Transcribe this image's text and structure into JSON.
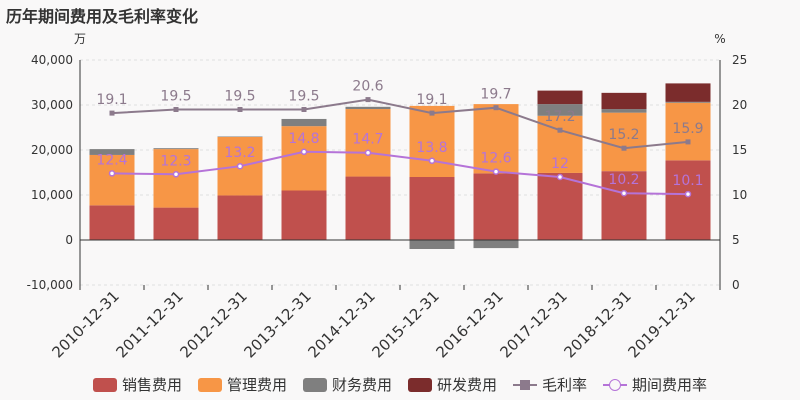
{
  "title": "历年期间费用及毛利率变化",
  "chart_data": {
    "type": "bar",
    "stacked": true,
    "categories": [
      "2010-12-31",
      "2011-12-31",
      "2012-12-31",
      "2013-12-31",
      "2014-12-31",
      "2015-12-31",
      "2016-12-31",
      "2017-12-31",
      "2018-12-31",
      "2019-12-31"
    ],
    "left_unit": "万",
    "right_unit": "%",
    "ylim_left": [
      -10000,
      40000
    ],
    "yticks_left": [
      "-10,000",
      "0",
      "10,000",
      "20,000",
      "30,000",
      "40,000"
    ],
    "ylim_right": [
      0,
      25
    ],
    "yticks_right": [
      "0",
      "5",
      "10",
      "15",
      "20",
      "25"
    ],
    "grid": true,
    "legend_position": "bottom",
    "bar_series": [
      {
        "name": "销售费用",
        "color": "#c0504d",
        "values": [
          7700,
          7200,
          9900,
          11000,
          14100,
          14000,
          14800,
          14900,
          15300,
          17700
        ]
      },
      {
        "name": "管理费用",
        "color": "#f79646",
        "values": [
          11200,
          13000,
          13000,
          14300,
          15000,
          15800,
          15400,
          12700,
          13000,
          12800
        ]
      },
      {
        "name": "财务费用",
        "color": "#7f7f7f",
        "values": [
          1300,
          200,
          100,
          1600,
          500,
          -2000,
          -1800,
          2600,
          800,
          200
        ]
      },
      {
        "name": "研发费用",
        "color": "#7b2c2c",
        "values": [
          0,
          0,
          0,
          0,
          0,
          0,
          0,
          3000,
          3600,
          4100
        ]
      }
    ],
    "line_series": [
      {
        "name": "毛利率",
        "color": "#8c7a8c",
        "marker": "square",
        "values": [
          19.1,
          19.5,
          19.5,
          19.5,
          20.6,
          19.1,
          19.7,
          17.2,
          15.2,
          15.9
        ],
        "labels": [
          "19.1",
          "19.5",
          "19.5",
          "19.5",
          "20.6",
          "19.1",
          "19.7",
          "17.2",
          "15.2",
          "15.9"
        ]
      },
      {
        "name": "期间费用率",
        "color": "#b573d8",
        "marker": "circle",
        "values": [
          12.4,
          12.3,
          13.2,
          14.8,
          14.7,
          13.8,
          12.6,
          12.0,
          10.2,
          10.1
        ],
        "labels": [
          "12.4",
          "12.3",
          "13.2",
          "14.8",
          "14.7",
          "13.8",
          "12.6",
          "12",
          "10.2",
          "10.1"
        ]
      }
    ]
  }
}
